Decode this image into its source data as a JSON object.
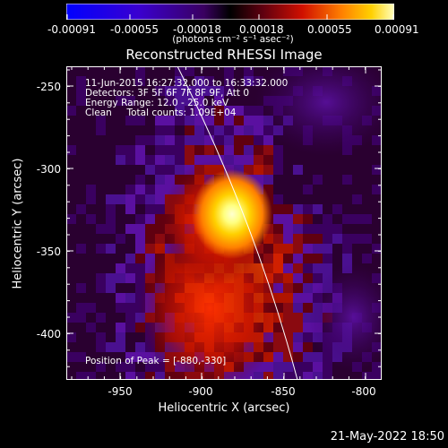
{
  "colorbar": {
    "tick_labels": [
      "-0.00091",
      "-0.00055",
      "-0.00018",
      "0.00018",
      "0.00055",
      "0.00091"
    ],
    "units_label": "(photons cm⁻² s⁻¹ asec⁻²)"
  },
  "plot": {
    "title": "Reconstructed RHESSI Image",
    "xlabel": "Heliocentric X (arcsec)",
    "ylabel": "Heliocentric Y (arcsec)",
    "x_ticks": [
      "-950",
      "-900",
      "-850",
      "-800"
    ],
    "y_ticks": [
      "-250",
      "-300",
      "-350",
      "-400"
    ],
    "info_lines": [
      "11-Jun-2015 16:27:32.000 to 16:33:32.000",
      "Detectors: 3F 5F 6F 7F 8F 9F, Att 0",
      "Energy Range: 12.0 - 25.0 keV",
      "Clean     Total counts: 1.09E+04"
    ],
    "peak_label": "Position of Peak = [-880,-330]"
  },
  "timestamp": "21-May-2022 18:50",
  "colors": {
    "background": "#000000",
    "foreground": "#ffffff",
    "limb_line": "#ffffff"
  }
}
